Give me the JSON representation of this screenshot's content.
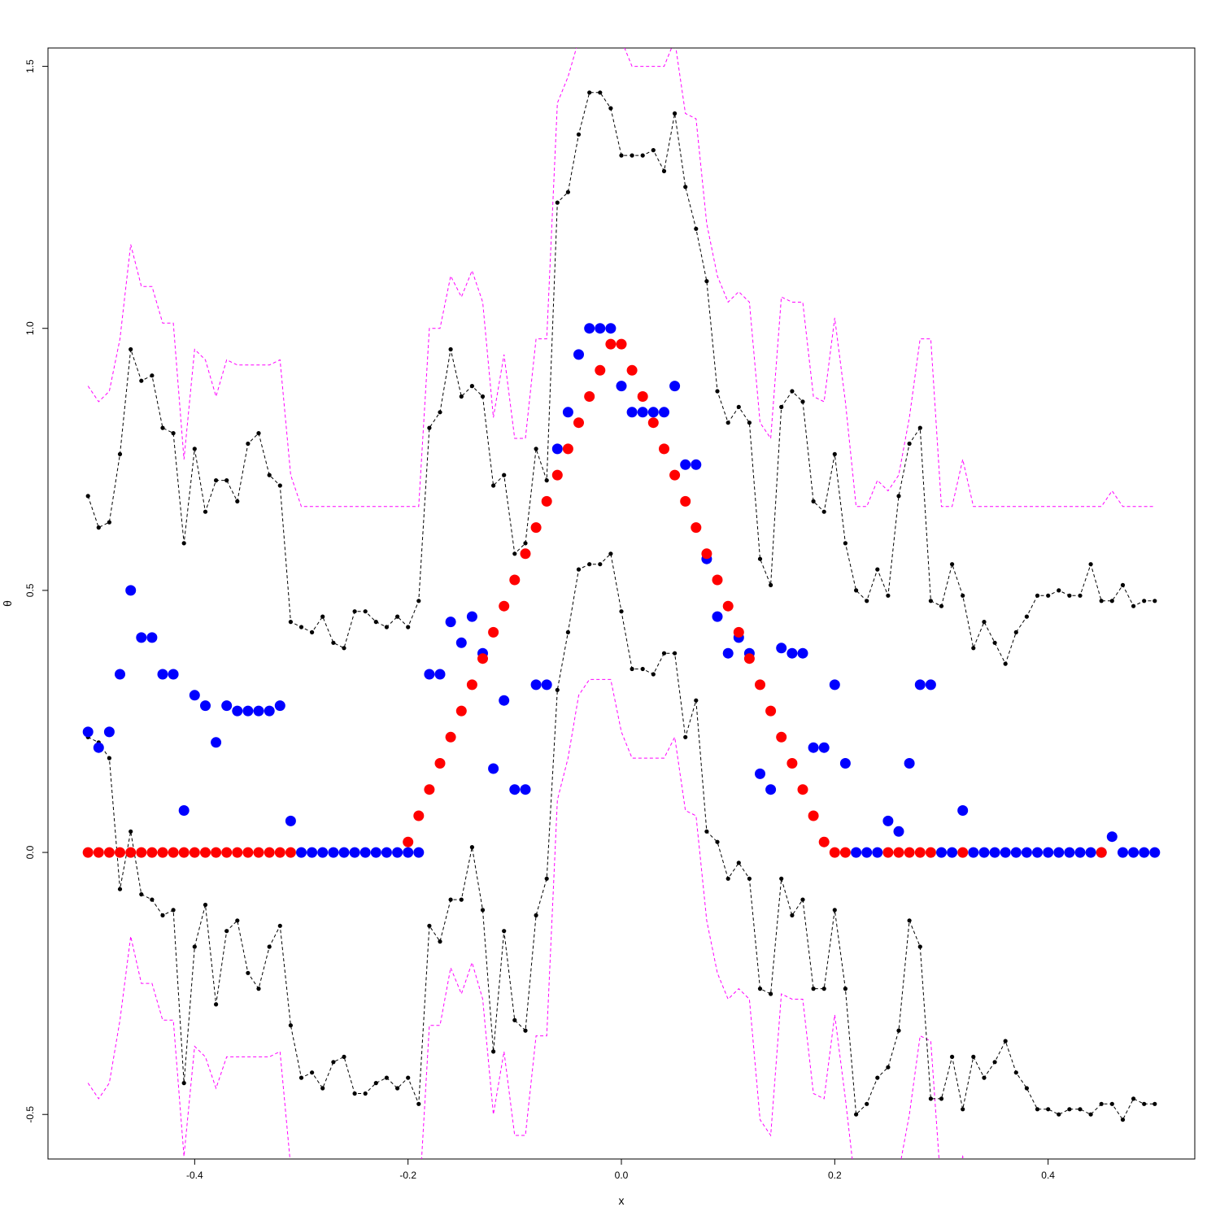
{
  "chart_data": {
    "type": "scatter",
    "title": "",
    "xlabel": "x",
    "ylabel": "θ",
    "xlim": [
      -0.5375,
      0.5375
    ],
    "ylim": [
      -0.585,
      1.535
    ],
    "x_ticks": [
      -0.4,
      -0.2,
      0.0,
      0.2,
      0.4
    ],
    "x_tick_labels": [
      "-0.4",
      "-0.2",
      "0.0",
      "0.2",
      "0.4"
    ],
    "y_ticks": [
      -0.5,
      0.0,
      0.5,
      1.0,
      1.5
    ],
    "y_tick_labels": [
      "-0.5",
      "0.0",
      "0.5",
      "1.0",
      "1.5"
    ],
    "grid": false,
    "legend": "none",
    "x": [
      -0.5,
      -0.49,
      -0.48,
      -0.47,
      -0.46,
      -0.45,
      -0.44,
      -0.43,
      -0.42,
      -0.41,
      -0.4,
      -0.39,
      -0.38,
      -0.37,
      -0.36,
      -0.35,
      -0.34,
      -0.33,
      -0.32,
      -0.31,
      -0.3,
      -0.29,
      -0.28,
      -0.27,
      -0.26,
      -0.25,
      -0.24,
      -0.23,
      -0.22,
      -0.21,
      -0.2,
      -0.19,
      -0.18,
      -0.17,
      -0.16,
      -0.15,
      -0.14,
      -0.13,
      -0.12,
      -0.11,
      -0.1,
      -0.09,
      -0.08,
      -0.07,
      -0.06,
      -0.05,
      -0.04,
      -0.03,
      -0.02,
      -0.01,
      0.0,
      0.01,
      0.02,
      0.03,
      0.04,
      0.05,
      0.06,
      0.07,
      0.08,
      0.09,
      0.1,
      0.11,
      0.12,
      0.13,
      0.14,
      0.15,
      0.16,
      0.17,
      0.18,
      0.19,
      0.2,
      0.21,
      0.22,
      0.23,
      0.24,
      0.25,
      0.26,
      0.27,
      0.28,
      0.29,
      0.3,
      0.31,
      0.32,
      0.33,
      0.34,
      0.35,
      0.36,
      0.37,
      0.38,
      0.39,
      0.4,
      0.41,
      0.42,
      0.43,
      0.44,
      0.45,
      0.46,
      0.47,
      0.48,
      0.49,
      0.5
    ],
    "series": [
      {
        "color": "#ff00ff",
        "style": "dashed-line",
        "values": [
          0.89,
          0.86,
          0.88,
          0.98,
          1.16,
          1.08,
          1.08,
          1.01,
          1.01,
          0.75,
          0.96,
          0.94,
          0.87,
          0.94,
          0.93,
          0.93,
          0.93,
          0.93,
          0.94,
          0.72,
          0.66,
          0.66,
          0.66,
          0.66,
          0.66,
          0.66,
          0.66,
          0.66,
          0.66,
          0.66,
          0.66,
          0.66,
          1.0,
          1.0,
          1.1,
          1.06,
          1.11,
          1.05,
          0.83,
          0.95,
          0.79,
          0.79,
          0.98,
          0.98,
          1.43,
          1.48,
          1.55,
          1.62,
          1.65,
          1.6,
          1.55,
          1.5,
          1.5,
          1.5,
          1.5,
          1.55,
          1.41,
          1.4,
          1.2,
          1.1,
          1.05,
          1.07,
          1.05,
          0.82,
          0.79,
          1.06,
          1.05,
          1.05,
          0.87,
          0.86,
          1.02,
          0.86,
          0.66,
          0.66,
          0.71,
          0.69,
          0.72,
          0.83,
          0.98,
          0.98,
          0.66,
          0.66,
          0.75,
          0.66,
          0.66,
          0.66,
          0.66,
          0.66,
          0.66,
          0.66,
          0.66,
          0.66,
          0.66,
          0.66,
          0.66,
          0.66,
          0.69,
          0.66,
          0.66,
          0.66,
          0.66
        ]
      },
      {
        "color": "#ff00ff",
        "style": "dashed-line",
        "values": [
          -0.44,
          -0.47,
          -0.44,
          -0.32,
          -0.16,
          -0.25,
          -0.25,
          -0.32,
          -0.32,
          -0.58,
          -0.37,
          -0.39,
          -0.45,
          -0.39,
          -0.39,
          -0.39,
          -0.39,
          -0.39,
          -0.38,
          -0.6,
          -0.68,
          -0.68,
          -0.68,
          -0.68,
          -0.68,
          -0.68,
          -0.68,
          -0.68,
          -0.68,
          -0.68,
          -0.68,
          -0.68,
          -0.33,
          -0.33,
          -0.22,
          -0.27,
          -0.21,
          -0.28,
          -0.5,
          -0.38,
          -0.54,
          -0.54,
          -0.35,
          -0.35,
          0.1,
          0.18,
          0.3,
          0.33,
          0.33,
          0.33,
          0.23,
          0.18,
          0.18,
          0.18,
          0.18,
          0.22,
          0.08,
          0.07,
          -0.13,
          -0.23,
          -0.28,
          -0.26,
          -0.28,
          -0.51,
          -0.54,
          -0.27,
          -0.28,
          -0.28,
          -0.46,
          -0.47,
          -0.31,
          -0.47,
          -0.65,
          -0.65,
          -0.62,
          -0.64,
          -0.61,
          -0.5,
          -0.35,
          -0.36,
          -0.65,
          -0.65,
          -0.58,
          -0.65,
          -0.65,
          -0.65,
          -0.65,
          -0.65,
          -0.65,
          -0.65,
          -0.65,
          -0.65,
          -0.65,
          -0.65,
          -0.65,
          -0.65,
          -0.63,
          -0.65,
          -0.65,
          -0.65,
          -0.65
        ]
      },
      {
        "color": "#000000",
        "style": "dashed-line-with-dots",
        "values": [
          0.68,
          0.62,
          0.63,
          0.76,
          0.96,
          0.9,
          0.91,
          0.81,
          0.8,
          0.59,
          0.77,
          0.65,
          0.71,
          0.71,
          0.67,
          0.78,
          0.8,
          0.72,
          0.7,
          0.44,
          0.43,
          0.42,
          0.45,
          0.4,
          0.39,
          0.46,
          0.46,
          0.44,
          0.43,
          0.45,
          0.43,
          0.48,
          0.81,
          0.84,
          0.96,
          0.87,
          0.89,
          0.87,
          0.7,
          0.72,
          0.57,
          0.59,
          0.77,
          0.71,
          1.24,
          1.26,
          1.37,
          1.45,
          1.45,
          1.42,
          1.33,
          1.33,
          1.33,
          1.34,
          1.3,
          1.41,
          1.27,
          1.19,
          1.09,
          0.88,
          0.82,
          0.85,
          0.82,
          0.56,
          0.51,
          0.85,
          0.88,
          0.86,
          0.67,
          0.65,
          0.76,
          0.59,
          0.5,
          0.48,
          0.54,
          0.49,
          0.68,
          0.78,
          0.81,
          0.48,
          0.47,
          0.55,
          0.49,
          0.39,
          0.44,
          0.4,
          0.36,
          0.42,
          0.45,
          0.49,
          0.49,
          0.5,
          0.49,
          0.49,
          0.55,
          0.48,
          0.48,
          0.51,
          0.47,
          0.48,
          0.48
        ]
      },
      {
        "color": "#000000",
        "style": "dashed-line-with-dots",
        "values": [
          0.22,
          0.21,
          0.18,
          -0.07,
          0.04,
          -0.08,
          -0.09,
          -0.12,
          -0.11,
          -0.44,
          -0.18,
          -0.1,
          -0.29,
          -0.15,
          -0.13,
          -0.23,
          -0.26,
          -0.18,
          -0.14,
          -0.33,
          -0.43,
          -0.42,
          -0.45,
          -0.4,
          -0.39,
          -0.46,
          -0.46,
          -0.44,
          -0.43,
          -0.45,
          -0.43,
          -0.48,
          -0.14,
          -0.17,
          -0.09,
          -0.09,
          0.01,
          -0.11,
          -0.38,
          -0.15,
          -0.32,
          -0.34,
          -0.12,
          -0.05,
          0.31,
          0.42,
          0.54,
          0.55,
          0.55,
          0.57,
          0.46,
          0.35,
          0.35,
          0.34,
          0.38,
          0.38,
          0.22,
          0.29,
          0.04,
          0.02,
          -0.05,
          -0.02,
          -0.05,
          -0.26,
          -0.27,
          -0.05,
          -0.12,
          -0.09,
          -0.26,
          -0.26,
          -0.11,
          -0.26,
          -0.5,
          -0.48,
          -0.43,
          -0.41,
          -0.34,
          -0.13,
          -0.18,
          -0.47,
          -0.47,
          -0.39,
          -0.49,
          -0.39,
          -0.43,
          -0.4,
          -0.36,
          -0.42,
          -0.45,
          -0.49,
          -0.49,
          -0.5,
          -0.49,
          -0.49,
          -0.5,
          -0.48,
          -0.48,
          -0.51,
          -0.47,
          -0.48,
          -0.48
        ]
      },
      {
        "color": "#0000ff",
        "style": "points",
        "values": [
          0.23,
          0.2,
          0.23,
          0.34,
          0.5,
          0.41,
          0.41,
          0.34,
          0.34,
          0.08,
          0.3,
          0.28,
          0.21,
          0.28,
          0.27,
          0.27,
          0.27,
          0.27,
          0.28,
          0.06,
          0.0,
          0.0,
          0.0,
          0.0,
          0.0,
          0.0,
          0.0,
          0.0,
          0.0,
          0.0,
          0.0,
          0.0,
          0.34,
          0.34,
          0.44,
          0.4,
          0.45,
          0.38,
          0.16,
          0.29,
          0.12,
          0.12,
          0.32,
          0.32,
          0.77,
          0.84,
          0.95,
          1.0,
          1.0,
          1.0,
          0.89,
          0.84,
          0.84,
          0.84,
          0.84,
          0.89,
          0.74,
          0.74,
          0.56,
          0.45,
          0.38,
          0.41,
          0.38,
          0.15,
          0.12,
          0.39,
          0.38,
          0.38,
          0.2,
          0.2,
          0.32,
          0.17,
          0.0,
          0.0,
          0.0,
          0.06,
          0.04,
          0.17,
          0.32,
          0.32,
          0.0,
          0.0,
          0.08,
          0.0,
          0.0,
          0.0,
          0.0,
          0.0,
          0.0,
          0.0,
          0.0,
          0.0,
          0.0,
          0.0,
          0.0,
          0.0,
          0.03,
          0.0,
          0.0,
          0.0,
          0.0
        ]
      },
      {
        "color": "#ff0000",
        "style": "points",
        "values": [
          0.0,
          0.0,
          0.0,
          0.0,
          0.0,
          0.0,
          0.0,
          0.0,
          0.0,
          0.0,
          0.0,
          0.0,
          0.0,
          0.0,
          0.0,
          0.0,
          0.0,
          0.0,
          0.0,
          0.0,
          null,
          null,
          null,
          null,
          null,
          null,
          null,
          null,
          null,
          null,
          0.02,
          0.07,
          0.12,
          0.17,
          0.22,
          0.27,
          0.32,
          0.37,
          0.42,
          0.47,
          0.52,
          0.57,
          0.62,
          0.67,
          0.72,
          0.77,
          0.82,
          0.87,
          0.92,
          0.97,
          0.97,
          0.92,
          0.87,
          0.82,
          0.77,
          0.72,
          0.67,
          0.62,
          0.57,
          0.52,
          0.47,
          0.42,
          0.37,
          0.32,
          0.27,
          0.22,
          0.17,
          0.12,
          0.07,
          0.02,
          0.0,
          0.0,
          null,
          null,
          null,
          0.0,
          0.0,
          0.0,
          0.0,
          0.0,
          null,
          null,
          0.0,
          null,
          null,
          null,
          null,
          null,
          null,
          null,
          null,
          null,
          null,
          null,
          null,
          0.0,
          null,
          null,
          null,
          null,
          null
        ]
      }
    ]
  }
}
